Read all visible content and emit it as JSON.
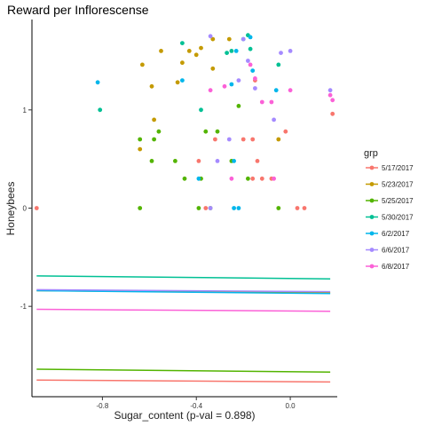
{
  "chart_data": {
    "type": "scatter",
    "title": "Reward per Inflorescense",
    "xlabel": "Sugar_content (p-val = 0.898)",
    "ylabel": "Honeybees",
    "xlim": [
      -1.1,
      0.2
    ],
    "ylim": [
      -1.92,
      1.92
    ],
    "xticks": [
      -0.8,
      -0.4,
      0.0
    ],
    "xtick_labels": [
      "-0.8",
      "-0.4",
      "0.0"
    ],
    "yticks": [
      -1,
      0,
      1
    ],
    "ytick_labels": [
      "-1",
      "0",
      "1"
    ],
    "legend": {
      "title": "grp",
      "position": "right"
    },
    "series": [
      {
        "name": "5/17/2017",
        "color": "#F8766D",
        "points": [
          [
            -1.08,
            0
          ],
          [
            0.03,
            0
          ],
          [
            0.06,
            0
          ],
          [
            -0.36,
            0
          ],
          [
            -0.16,
            0.3
          ],
          [
            -0.12,
            0.3
          ],
          [
            -0.14,
            0.48
          ],
          [
            -0.2,
            0.7
          ],
          [
            -0.16,
            0.7
          ],
          [
            -0.02,
            0.78
          ],
          [
            0.18,
            0.96
          ],
          [
            -0.39,
            0.48
          ],
          [
            -0.15,
            1.3
          ],
          [
            -0.08,
            0.3
          ],
          [
            -0.32,
            0.7
          ]
        ]
      },
      {
        "name": "5/23/2017",
        "color": "#C49A00",
        "points": [
          [
            -0.63,
            1.46
          ],
          [
            -0.55,
            1.6
          ],
          [
            -0.46,
            1.48
          ],
          [
            -0.43,
            1.6
          ],
          [
            -0.38,
            1.63
          ],
          [
            -0.33,
            1.72
          ],
          [
            -0.26,
            1.72
          ],
          [
            -0.33,
            1.42
          ],
          [
            -0.59,
            1.24
          ],
          [
            -0.48,
            1.28
          ],
          [
            -0.64,
            0.6
          ],
          [
            -0.58,
            0.9
          ],
          [
            -0.05,
            0.7
          ],
          [
            -0.4,
            1.56
          ]
        ]
      },
      {
        "name": "5/25/2017",
        "color": "#53B400",
        "points": [
          [
            -0.64,
            0.7
          ],
          [
            -0.58,
            0.7
          ],
          [
            -0.56,
            0.78
          ],
          [
            -0.59,
            0.48
          ],
          [
            -0.49,
            0.48
          ],
          [
            -0.45,
            0.3
          ],
          [
            -0.38,
            0.3
          ],
          [
            -0.36,
            0.78
          ],
          [
            -0.31,
            0.78
          ],
          [
            -0.25,
            0.48
          ],
          [
            -0.18,
            0.3
          ],
          [
            -0.64,
            0
          ],
          [
            -0.39,
            0
          ],
          [
            -0.34,
            0
          ],
          [
            -0.05,
            0
          ],
          [
            -0.22,
            1.04
          ]
        ]
      },
      {
        "name": "5/30/2017",
        "color": "#00C094",
        "points": [
          [
            -0.46,
            1.68
          ],
          [
            -0.27,
            1.58
          ],
          [
            -0.25,
            1.6
          ],
          [
            -0.2,
            1.72
          ],
          [
            -0.18,
            1.76
          ],
          [
            -0.17,
            1.62
          ],
          [
            -0.05,
            1.46
          ],
          [
            -0.81,
            1.0
          ],
          [
            -0.38,
            1.0
          ]
        ]
      },
      {
        "name": "6/2/2017",
        "color": "#00B6EB",
        "points": [
          [
            -0.82,
            1.28
          ],
          [
            -0.46,
            1.3
          ],
          [
            -0.25,
            1.26
          ],
          [
            -0.24,
            0.48
          ],
          [
            -0.39,
            0.3
          ],
          [
            -0.24,
            0
          ],
          [
            -0.22,
            0
          ],
          [
            -0.16,
            1.4
          ],
          [
            -0.06,
            1.2
          ],
          [
            -0.23,
            1.6
          ],
          [
            -0.17,
            1.74
          ]
        ]
      },
      {
        "name": "6/6/2017",
        "color": "#A58AFF",
        "points": [
          [
            -0.34,
            1.75
          ],
          [
            -0.2,
            1.72
          ],
          [
            -0.22,
            1.3
          ],
          [
            -0.18,
            1.5
          ],
          [
            -0.15,
            1.22
          ],
          [
            -0.04,
            1.58
          ],
          [
            0.0,
            1.6
          ],
          [
            0.17,
            1.2
          ],
          [
            -0.07,
            0.9
          ],
          [
            -0.34,
            0
          ],
          [
            -0.26,
            0.7
          ],
          [
            -0.31,
            0.48
          ]
        ]
      },
      {
        "name": "6/8/2017",
        "color": "#FB61D7",
        "points": [
          [
            -0.34,
            1.2
          ],
          [
            -0.28,
            1.24
          ],
          [
            -0.17,
            1.46
          ],
          [
            -0.15,
            1.32
          ],
          [
            -0.12,
            1.08
          ],
          [
            -0.08,
            1.08
          ],
          [
            -0.25,
            0.3
          ],
          [
            -0.07,
            0.3
          ],
          [
            0.0,
            1.2
          ],
          [
            0.17,
            1.15
          ],
          [
            0.18,
            1.1
          ]
        ]
      }
    ],
    "trend_lines": [
      {
        "name": "5/17/2017",
        "color": "#F8766D",
        "x": [
          -1.08,
          0.17
        ],
        "y": [
          -1.75,
          -1.77
        ]
      },
      {
        "name": "5/23/2017",
        "color": "#C49A00",
        "x": [
          -1.08,
          0.17
        ],
        "y": [
          -0.84,
          -0.86
        ]
      },
      {
        "name": "5/25/2017",
        "color": "#53B400",
        "x": [
          -1.08,
          0.17
        ],
        "y": [
          -1.64,
          -1.67
        ]
      },
      {
        "name": "5/30/2017",
        "color": "#00C094",
        "x": [
          -1.08,
          0.17
        ],
        "y": [
          -0.69,
          -0.72
        ]
      },
      {
        "name": "6/2/2017",
        "color": "#00B6EB",
        "x": [
          -1.08,
          0.17
        ],
        "y": [
          -0.84,
          -0.87
        ]
      },
      {
        "name": "6/6/2017",
        "color": "#A58AFF",
        "x": [
          -1.08,
          0.17
        ],
        "y": [
          -0.83,
          -0.85
        ]
      },
      {
        "name": "6/8/2017",
        "color": "#FB61D7",
        "x": [
          -1.08,
          0.17
        ],
        "y": [
          -1.03,
          -1.05
        ]
      }
    ]
  }
}
